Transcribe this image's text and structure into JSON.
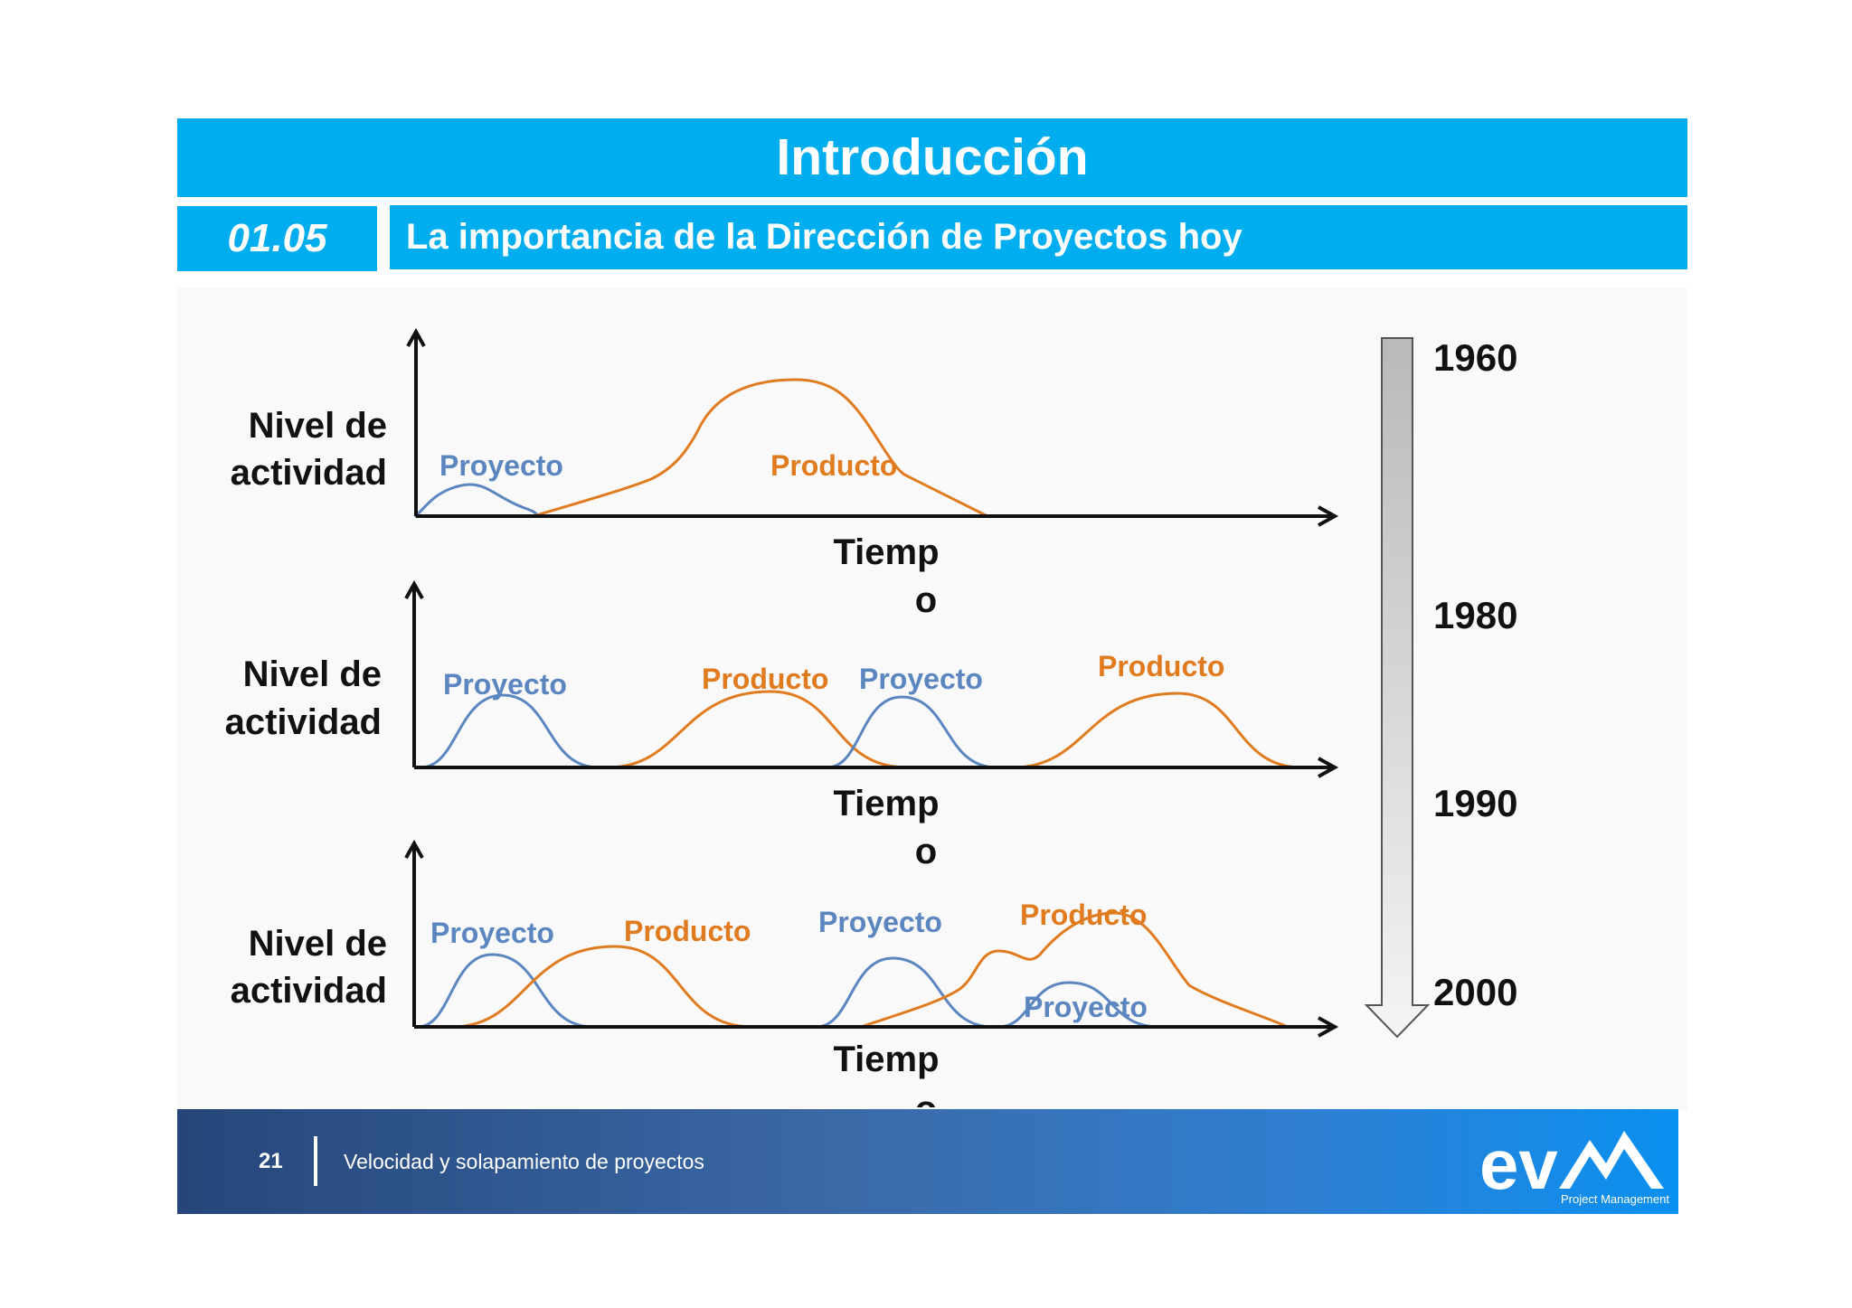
{
  "header": {
    "title": "Introducción",
    "section_number": "01.05",
    "section_title": "La importancia de la Dirección de Proyectos hoy"
  },
  "diagram": {
    "y_axis_label": [
      "Nivel de",
      "actividad"
    ],
    "x_axis_label": [
      "Tiemp",
      "o"
    ],
    "panels": [
      {
        "labels": [
          {
            "text": "Proyecto",
            "kind": "proyecto"
          },
          {
            "text": "Producto",
            "kind": "producto"
          }
        ]
      },
      {
        "labels": [
          {
            "text": "Proyecto",
            "kind": "proyecto"
          },
          {
            "text": "Producto",
            "kind": "producto"
          },
          {
            "text": "Proyecto",
            "kind": "proyecto"
          },
          {
            "text": "Producto",
            "kind": "producto"
          }
        ]
      },
      {
        "labels": [
          {
            "text": "Proyecto",
            "kind": "proyecto"
          },
          {
            "text": "Producto",
            "kind": "producto"
          },
          {
            "text": "Proyecto",
            "kind": "proyecto"
          },
          {
            "text": "Producto",
            "kind": "producto"
          },
          {
            "text": "Proyecto",
            "kind": "proyecto"
          }
        ]
      }
    ],
    "timeline_years": [
      "1960",
      "1980",
      "1990",
      "2000"
    ],
    "colors": {
      "proyecto": "#5b86c0",
      "producto": "#e07b1f",
      "axis": "#111111"
    }
  },
  "footer": {
    "page": "21",
    "text": "Velocidad  y solapamiento de proyectos",
    "logo_text": "ev",
    "logo_subtext": "Project Management"
  }
}
